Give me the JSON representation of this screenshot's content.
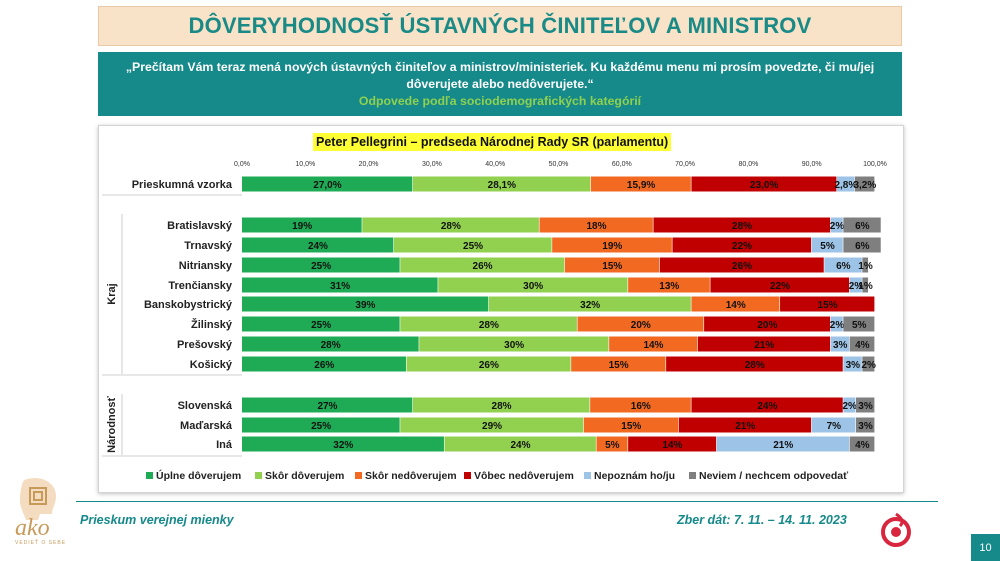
{
  "header": {
    "title": "DÔVERYHODNOSŤ ÚSTAVNÝCH ČINITEĽOV A MINISTROV"
  },
  "question": {
    "text": "„Prečítam Vám teraz mená nových ústavných činiteľov a ministrov/ministeriek. Ku každému menu mi prosím povedzte, či mu/jej dôverujete alebo nedôverujete.“",
    "subtitle": "Odpovede podľa sociodemografických kategórií"
  },
  "footer": {
    "survey": "Prieskum verejnej mienky",
    "dates": "Zber dát: 7. 11. – 14. 11. 2023",
    "page": "10",
    "logo_text": "ako",
    "logo_sub": "VEDIEŤ O SEBE"
  },
  "colors": {
    "accent": "#16898a",
    "title_bg": "#f8e3c9",
    "highlight": "#ffff33"
  },
  "chart_data": {
    "type": "bar",
    "orientation": "horizontal-stacked-100",
    "title": "Peter Pellegrini – predseda Národnej Rady SR (parlamentu)",
    "xlim": [
      0,
      100
    ],
    "ticks": [
      "0,0%",
      "10,0%",
      "20,0%",
      "30,0%",
      "40,0%",
      "50,0%",
      "60,0%",
      "70,0%",
      "80,0%",
      "90,0%",
      "100,0%"
    ],
    "legend_position": "bottom",
    "series": [
      {
        "name": "Úplne dôverujem",
        "color": "#1fab55"
      },
      {
        "name": "Skôr dôverujem",
        "color": "#92d050"
      },
      {
        "name": "Skôr nedôverujem",
        "color": "#f26a22"
      },
      {
        "name": "Vôbec nedôverujem",
        "color": "#c00000"
      },
      {
        "name": "Nepoznám ho/ju",
        "color": "#9dc3e6"
      },
      {
        "name": "Neviem / nechcem odpovedať",
        "color": "#7f7f7f"
      }
    ],
    "groups": [
      {
        "label": "",
        "rows": [
          {
            "category": "Prieskumná vzorka",
            "values": [
              27.0,
              28.1,
              15.9,
              23.0,
              2.8,
              3.2
            ],
            "labels": [
              "27,0%",
              "28,1%",
              "15,9%",
              "23,0%",
              "2,8%",
              "3,2%"
            ]
          }
        ]
      },
      {
        "label": "Kraj",
        "rows": [
          {
            "category": "Bratislavský",
            "values": [
              19,
              28,
              18,
              28,
              2,
              6
            ],
            "labels": [
              "19%",
              "28%",
              "18%",
              "28%",
              "2%",
              "6%"
            ]
          },
          {
            "category": "Trnavský",
            "values": [
              24,
              25,
              19,
              22,
              5,
              6
            ],
            "labels": [
              "24%",
              "25%",
              "19%",
              "22%",
              "5%",
              "6%"
            ]
          },
          {
            "category": "Nitriansky",
            "values": [
              25,
              26,
              15,
              26,
              6,
              1
            ],
            "labels": [
              "25%",
              "26%",
              "15%",
              "26%",
              "6%",
              "1%"
            ]
          },
          {
            "category": "Trenčiansky",
            "values": [
              31,
              30,
              13,
              22,
              2,
              1
            ],
            "labels": [
              "31%",
              "30%",
              "13%",
              "22%",
              "2%",
              "1%"
            ]
          },
          {
            "category": "Banskobystrický",
            "values": [
              39,
              32,
              14,
              15,
              0,
              0
            ],
            "labels": [
              "39%",
              "32%",
              "14%",
              "15%",
              "",
              ""
            ]
          },
          {
            "category": "Žilinský",
            "values": [
              25,
              28,
              20,
              20,
              2,
              5
            ],
            "labels": [
              "25%",
              "28%",
              "20%",
              "20%",
              "2%",
              "5%"
            ]
          },
          {
            "category": "Prešovský",
            "values": [
              28,
              30,
              14,
              21,
              3,
              4
            ],
            "labels": [
              "28%",
              "30%",
              "14%",
              "21%",
              "3%",
              "4%"
            ]
          },
          {
            "category": "Košický",
            "values": [
              26,
              26,
              15,
              28,
              3,
              2
            ],
            "labels": [
              "26%",
              "26%",
              "15%",
              "28%",
              "3%",
              "2%"
            ]
          }
        ]
      },
      {
        "label": "Národnosť",
        "rows": [
          {
            "category": "Slovenská",
            "values": [
              27,
              28,
              16,
              24,
              2,
              3
            ],
            "labels": [
              "27%",
              "28%",
              "16%",
              "24%",
              "2%",
              "3%"
            ]
          },
          {
            "category": "Maďarská",
            "values": [
              25,
              29,
              15,
              21,
              7,
              3
            ],
            "labels": [
              "25%",
              "29%",
              "15%",
              "21%",
              "7%",
              "3%"
            ]
          },
          {
            "category": "Iná",
            "values": [
              32,
              24,
              5,
              14,
              21,
              4
            ],
            "labels": [
              "32%",
              "24%",
              "5%",
              "14%",
              "21%",
              "4%"
            ]
          }
        ]
      }
    ]
  }
}
